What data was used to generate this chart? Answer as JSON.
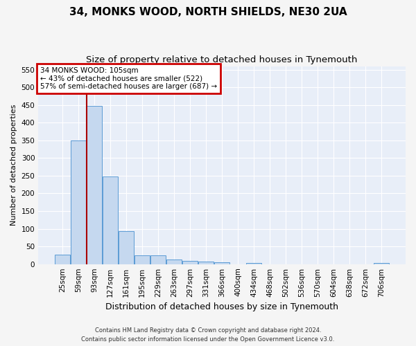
{
  "title1": "34, MONKS WOOD, NORTH SHIELDS, NE30 2UA",
  "title2": "Size of property relative to detached houses in Tynemouth",
  "xlabel": "Distribution of detached houses by size in Tynemouth",
  "ylabel": "Number of detached properties",
  "categories": [
    "25sqm",
    "59sqm",
    "93sqm",
    "127sqm",
    "161sqm",
    "195sqm",
    "229sqm",
    "263sqm",
    "297sqm",
    "331sqm",
    "366sqm",
    "400sqm",
    "434sqm",
    "468sqm",
    "502sqm",
    "536sqm",
    "570sqm",
    "604sqm",
    "638sqm",
    "672sqm",
    "706sqm"
  ],
  "values": [
    27,
    350,
    447,
    247,
    93,
    25,
    25,
    13,
    10,
    7,
    5,
    0,
    4,
    0,
    0,
    0,
    0,
    0,
    0,
    0,
    4
  ],
  "bar_color": "#c5d8ef",
  "bar_edge_color": "#5b9bd5",
  "vline_x_index": 2,
  "vline_color": "#aa0000",
  "annotation_title": "34 MONKS WOOD: 105sqm",
  "annotation_line1": "← 43% of detached houses are smaller (522)",
  "annotation_line2": "57% of semi-detached houses are larger (687) →",
  "annotation_box_facecolor": "#ffffff",
  "annotation_box_edgecolor": "#cc0000",
  "footer1": "Contains HM Land Registry data © Crown copyright and database right 2024.",
  "footer2": "Contains public sector information licensed under the Open Government Licence v3.0.",
  "ylim": [
    0,
    560
  ],
  "yticks": [
    0,
    50,
    100,
    150,
    200,
    250,
    300,
    350,
    400,
    450,
    500,
    550
  ],
  "plot_bg": "#e8eef8",
  "fig_bg": "#f5f5f5",
  "grid_color": "#ffffff",
  "title1_fontsize": 11,
  "title2_fontsize": 9.5,
  "ylabel_fontsize": 8,
  "xlabel_fontsize": 9,
  "tick_fontsize": 7.5,
  "annotation_fontsize": 7.5,
  "footer_fontsize": 6
}
